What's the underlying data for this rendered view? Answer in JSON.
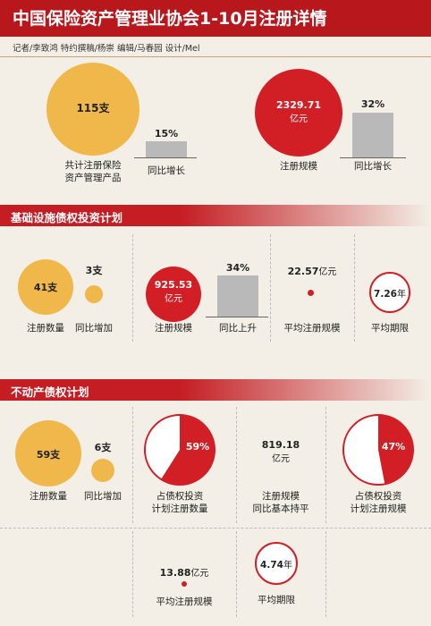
{
  "title": "中国保险资产管理业协会1-10月注册详情",
  "credits": "记者/李致鸿  特约撰稿/杨崇  编辑/马春园  设计/Mel",
  "colors": {
    "red": "#d21f26",
    "gold": "#f0b84a",
    "gray": "#b9b9b9"
  },
  "summary": {
    "products": {
      "value": "115",
      "unit": "支",
      "label1": "共计注册保险",
      "label2": "资产管理产品"
    },
    "products_growth": {
      "value": "15%",
      "label": "同比增长"
    },
    "scale": {
      "value": "2329.71",
      "unit": "亿元",
      "label": "注册规模"
    },
    "scale_growth": {
      "value": "32%",
      "label": "同比增长"
    }
  },
  "infra": {
    "title": "基础设施债权投资计划",
    "count": {
      "value": "41",
      "unit": "支",
      "label": "注册数量"
    },
    "count_growth": {
      "value": "3",
      "unit": "支",
      "label": "同比增加"
    },
    "scale": {
      "value": "925.53",
      "unit": "亿元",
      "label": "注册规模"
    },
    "scale_growth": {
      "value": "34%",
      "label": "同比上升"
    },
    "avg_scale": {
      "value": "22.57",
      "unit": "亿元",
      "label": "平均注册规模"
    },
    "avg_term": {
      "value": "7.26",
      "unit": "年",
      "label": "平均期限"
    }
  },
  "realestate": {
    "title": "不动产债权计划",
    "count": {
      "value": "59",
      "unit": "支",
      "label": "注册数量"
    },
    "count_growth": {
      "value": "6",
      "unit": "支",
      "label": "同比增加"
    },
    "count_share": {
      "value": "59%",
      "label1": "占债权投资",
      "label2": "计划注册数量"
    },
    "scale": {
      "value": "819.18",
      "unit": "亿元",
      "label1": "注册规模",
      "label2": "同比基本持平"
    },
    "scale_share": {
      "value": "47%",
      "label1": "占债权投资",
      "label2": "计划注册规模"
    },
    "avg_scale": {
      "value": "13.88",
      "unit": "亿元",
      "label": "平均注册规模"
    },
    "avg_term": {
      "value": "4.74",
      "unit": "年",
      "label": "平均期限"
    }
  },
  "chart_data": [
    {
      "type": "bar",
      "categories": [
        "共计注册保险资产管理产品",
        "同比增长"
      ],
      "values": [
        115,
        15
      ],
      "units": [
        "支",
        "%"
      ]
    },
    {
      "type": "bar",
      "categories": [
        "注册规模",
        "同比增长"
      ],
      "values": [
        2329.71,
        32
      ],
      "units": [
        "亿元",
        "%"
      ]
    },
    {
      "type": "bar",
      "categories": [
        "注册数量",
        "同比增加"
      ],
      "values": [
        41,
        3
      ],
      "units": [
        "支",
        "支"
      ]
    },
    {
      "type": "bar",
      "categories": [
        "注册规模",
        "同比上升"
      ],
      "values": [
        925.53,
        34
      ],
      "units": [
        "亿元",
        "%"
      ]
    },
    {
      "type": "bar",
      "categories": [
        "注册数量",
        "同比增加"
      ],
      "values": [
        59,
        6
      ],
      "units": [
        "支",
        "支"
      ]
    },
    {
      "type": "pie",
      "categories": [
        "占债权投资计划注册数量"
      ],
      "values": [
        59
      ],
      "unit": "%"
    },
    {
      "type": "pie",
      "categories": [
        "占债权投资计划注册规模"
      ],
      "values": [
        47
      ],
      "unit": "%"
    }
  ]
}
